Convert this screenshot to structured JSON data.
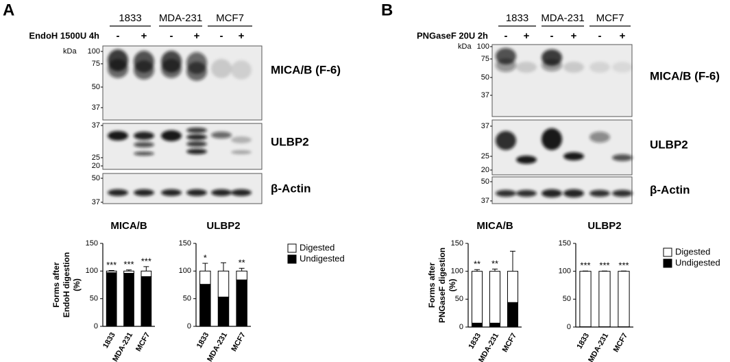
{
  "panels": [
    {
      "label": "A",
      "treatment": "EndoH 1500U 4h",
      "cell_lines": [
        "1833",
        "MDA-231",
        "MCF7"
      ],
      "signs": [
        "-",
        "+",
        "-",
        "+",
        "-",
        "+"
      ],
      "kda_unit": "kDa",
      "blots": [
        {
          "protein": "MICA/B (F-6)",
          "markers": [
            100,
            75,
            50,
            37
          ]
        },
        {
          "protein": "ULBP2",
          "markers": [
            37,
            25,
            20
          ]
        },
        {
          "protein": "β-Actin",
          "markers": [
            50,
            37
          ]
        }
      ]
    },
    {
      "label": "B",
      "treatment": "PNGaseF 20U 2h",
      "cell_lines": [
        "1833",
        "MDA-231",
        "MCF7"
      ],
      "signs": [
        "-",
        "+",
        "-",
        "+",
        "-",
        "+"
      ],
      "kda_unit": "kDa",
      "blots": [
        {
          "protein": "MICA/B (F-6)",
          "markers": [
            100,
            75,
            50,
            37
          ]
        },
        {
          "protein": "ULBP2",
          "markers": [
            37,
            25,
            20
          ]
        },
        {
          "protein": "β-Actin",
          "markers": [
            50,
            37
          ]
        }
      ]
    }
  ],
  "chart_data": [
    {
      "type": "bar",
      "stacked": true,
      "title": "MICA/B",
      "y_label": [
        "Forms after",
        "EndoH digestion",
        "(%)"
      ],
      "categories": [
        "1833",
        "MDA-231",
        "MCF7"
      ],
      "series": [
        {
          "name": "Undigested",
          "color": "#000000",
          "values": [
            97,
            96,
            90
          ],
          "errors": [
            1,
            2,
            5
          ]
        },
        {
          "name": "Digested",
          "color": "#ffffff",
          "values": [
            3,
            4,
            10
          ],
          "errors": [
            1,
            2,
            8
          ]
        }
      ],
      "annotations": [
        "***",
        "***",
        "***"
      ],
      "ylim": [
        0,
        150
      ],
      "yticks": [
        0,
        50,
        100,
        150
      ],
      "legend": false
    },
    {
      "type": "bar",
      "stacked": true,
      "title": "ULBP2",
      "categories": [
        "1833",
        "MDA-231",
        "MCF7"
      ],
      "series": [
        {
          "name": "Undigested",
          "color": "#000000",
          "values": [
            76,
            53,
            84
          ],
          "errors": [
            14,
            14,
            4
          ]
        },
        {
          "name": "Digested",
          "color": "#ffffff",
          "values": [
            24,
            47,
            16
          ],
          "errors": [
            14,
            15,
            5
          ]
        }
      ],
      "annotations": [
        "*",
        null,
        "**"
      ],
      "ylim": [
        0,
        150
      ],
      "yticks": [
        0,
        50,
        100,
        150
      ],
      "legend": true
    },
    {
      "type": "bar",
      "stacked": true,
      "title": "MICA/B",
      "y_label": [
        "Forms after",
        "PNGaseF digestion",
        "(%)"
      ],
      "categories": [
        "1833",
        "MDA-231",
        "MCF7"
      ],
      "series": [
        {
          "name": "Undigested",
          "color": "#000000",
          "values": [
            7,
            7,
            44
          ],
          "errors": [
            3,
            4,
            36
          ]
        },
        {
          "name": "Digested",
          "color": "#ffffff",
          "values": [
            93,
            93,
            56
          ],
          "errors": [
            3,
            4,
            36
          ]
        }
      ],
      "annotations": [
        "**",
        "**",
        null
      ],
      "ylim": [
        0,
        150
      ],
      "yticks": [
        0,
        50,
        100,
        150
      ],
      "legend": false
    },
    {
      "type": "bar",
      "stacked": true,
      "title": "ULBP2",
      "categories": [
        "1833",
        "MDA-231",
        "MCF7"
      ],
      "series": [
        {
          "name": "Undigested",
          "color": "#000000",
          "values": [
            0.5,
            0.5,
            0.5
          ],
          "errors": [
            0.2,
            0.2,
            0.2
          ]
        },
        {
          "name": "Digested",
          "color": "#ffffff",
          "values": [
            99.5,
            99.5,
            99.5
          ],
          "errors": [
            0.5,
            0.5,
            0.5
          ]
        }
      ],
      "annotations": [
        "***",
        "***",
        "***"
      ],
      "ylim": [
        0,
        150
      ],
      "yticks": [
        0,
        50,
        100,
        150
      ],
      "legend": true
    }
  ]
}
